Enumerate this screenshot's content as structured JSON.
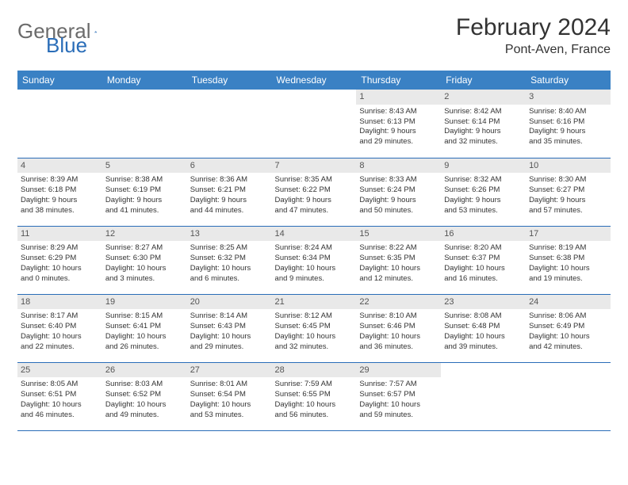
{
  "logo": {
    "part1": "General",
    "part2": "Blue"
  },
  "title": "February 2024",
  "location": "Pont-Aven, France",
  "colors": {
    "header_bg": "#3a81c4",
    "rule": "#2a6db8",
    "daynum_bg": "#e9e9e9",
    "text": "#333333",
    "logo_gray": "#6b6b6b",
    "logo_blue": "#2a6db8"
  },
  "weekdays": [
    "Sunday",
    "Monday",
    "Tuesday",
    "Wednesday",
    "Thursday",
    "Friday",
    "Saturday"
  ],
  "weeks": [
    [
      null,
      null,
      null,
      null,
      {
        "d": "1",
        "sr": "8:43 AM",
        "ss": "6:13 PM",
        "dl1": "Daylight: 9 hours",
        "dl2": "and 29 minutes."
      },
      {
        "d": "2",
        "sr": "8:42 AM",
        "ss": "6:14 PM",
        "dl1": "Daylight: 9 hours",
        "dl2": "and 32 minutes."
      },
      {
        "d": "3",
        "sr": "8:40 AM",
        "ss": "6:16 PM",
        "dl1": "Daylight: 9 hours",
        "dl2": "and 35 minutes."
      }
    ],
    [
      {
        "d": "4",
        "sr": "8:39 AM",
        "ss": "6:18 PM",
        "dl1": "Daylight: 9 hours",
        "dl2": "and 38 minutes."
      },
      {
        "d": "5",
        "sr": "8:38 AM",
        "ss": "6:19 PM",
        "dl1": "Daylight: 9 hours",
        "dl2": "and 41 minutes."
      },
      {
        "d": "6",
        "sr": "8:36 AM",
        "ss": "6:21 PM",
        "dl1": "Daylight: 9 hours",
        "dl2": "and 44 minutes."
      },
      {
        "d": "7",
        "sr": "8:35 AM",
        "ss": "6:22 PM",
        "dl1": "Daylight: 9 hours",
        "dl2": "and 47 minutes."
      },
      {
        "d": "8",
        "sr": "8:33 AM",
        "ss": "6:24 PM",
        "dl1": "Daylight: 9 hours",
        "dl2": "and 50 minutes."
      },
      {
        "d": "9",
        "sr": "8:32 AM",
        "ss": "6:26 PM",
        "dl1": "Daylight: 9 hours",
        "dl2": "and 53 minutes."
      },
      {
        "d": "10",
        "sr": "8:30 AM",
        "ss": "6:27 PM",
        "dl1": "Daylight: 9 hours",
        "dl2": "and 57 minutes."
      }
    ],
    [
      {
        "d": "11",
        "sr": "8:29 AM",
        "ss": "6:29 PM",
        "dl1": "Daylight: 10 hours",
        "dl2": "and 0 minutes."
      },
      {
        "d": "12",
        "sr": "8:27 AM",
        "ss": "6:30 PM",
        "dl1": "Daylight: 10 hours",
        "dl2": "and 3 minutes."
      },
      {
        "d": "13",
        "sr": "8:25 AM",
        "ss": "6:32 PM",
        "dl1": "Daylight: 10 hours",
        "dl2": "and 6 minutes."
      },
      {
        "d": "14",
        "sr": "8:24 AM",
        "ss": "6:34 PM",
        "dl1": "Daylight: 10 hours",
        "dl2": "and 9 minutes."
      },
      {
        "d": "15",
        "sr": "8:22 AM",
        "ss": "6:35 PM",
        "dl1": "Daylight: 10 hours",
        "dl2": "and 12 minutes."
      },
      {
        "d": "16",
        "sr": "8:20 AM",
        "ss": "6:37 PM",
        "dl1": "Daylight: 10 hours",
        "dl2": "and 16 minutes."
      },
      {
        "d": "17",
        "sr": "8:19 AM",
        "ss": "6:38 PM",
        "dl1": "Daylight: 10 hours",
        "dl2": "and 19 minutes."
      }
    ],
    [
      {
        "d": "18",
        "sr": "8:17 AM",
        "ss": "6:40 PM",
        "dl1": "Daylight: 10 hours",
        "dl2": "and 22 minutes."
      },
      {
        "d": "19",
        "sr": "8:15 AM",
        "ss": "6:41 PM",
        "dl1": "Daylight: 10 hours",
        "dl2": "and 26 minutes."
      },
      {
        "d": "20",
        "sr": "8:14 AM",
        "ss": "6:43 PM",
        "dl1": "Daylight: 10 hours",
        "dl2": "and 29 minutes."
      },
      {
        "d": "21",
        "sr": "8:12 AM",
        "ss": "6:45 PM",
        "dl1": "Daylight: 10 hours",
        "dl2": "and 32 minutes."
      },
      {
        "d": "22",
        "sr": "8:10 AM",
        "ss": "6:46 PM",
        "dl1": "Daylight: 10 hours",
        "dl2": "and 36 minutes."
      },
      {
        "d": "23",
        "sr": "8:08 AM",
        "ss": "6:48 PM",
        "dl1": "Daylight: 10 hours",
        "dl2": "and 39 minutes."
      },
      {
        "d": "24",
        "sr": "8:06 AM",
        "ss": "6:49 PM",
        "dl1": "Daylight: 10 hours",
        "dl2": "and 42 minutes."
      }
    ],
    [
      {
        "d": "25",
        "sr": "8:05 AM",
        "ss": "6:51 PM",
        "dl1": "Daylight: 10 hours",
        "dl2": "and 46 minutes."
      },
      {
        "d": "26",
        "sr": "8:03 AM",
        "ss": "6:52 PM",
        "dl1": "Daylight: 10 hours",
        "dl2": "and 49 minutes."
      },
      {
        "d": "27",
        "sr": "8:01 AM",
        "ss": "6:54 PM",
        "dl1": "Daylight: 10 hours",
        "dl2": "and 53 minutes."
      },
      {
        "d": "28",
        "sr": "7:59 AM",
        "ss": "6:55 PM",
        "dl1": "Daylight: 10 hours",
        "dl2": "and 56 minutes."
      },
      {
        "d": "29",
        "sr": "7:57 AM",
        "ss": "6:57 PM",
        "dl1": "Daylight: 10 hours",
        "dl2": "and 59 minutes."
      },
      null,
      null
    ]
  ],
  "labels": {
    "sunrise": "Sunrise:",
    "sunset": "Sunset:"
  }
}
